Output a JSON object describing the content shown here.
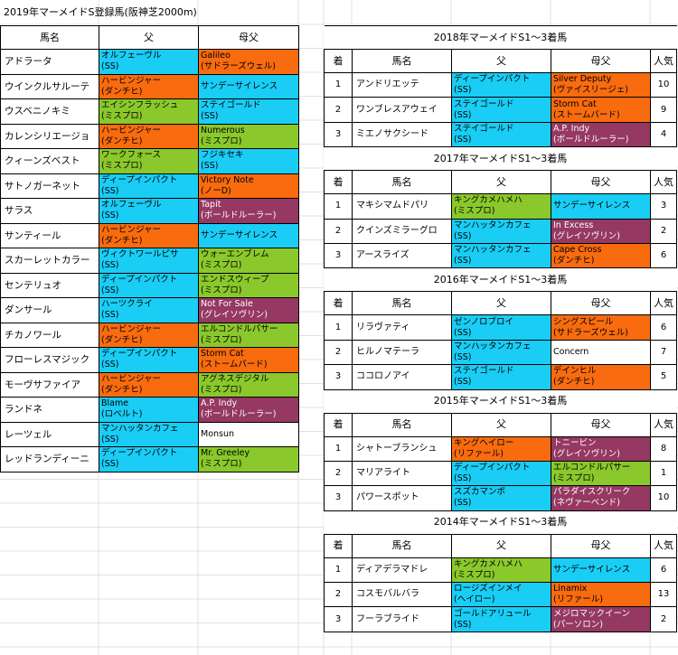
{
  "title": "2019年マーメイドS登録馬(阪神芝2000m)",
  "colors": {
    "blue": "#19cdf5",
    "orange": "#f86b0e",
    "green": "#8ac82b",
    "purple": "#953862",
    "white": "#ffffff"
  },
  "left": {
    "headers": {
      "name": "馬名",
      "sire": "父",
      "damsire": "母父"
    },
    "rows": [
      {
        "name": "アドラータ",
        "sire": [
          "オルフェーヴル",
          "(SS)"
        ],
        "sire_color": "blue",
        "damsire": [
          "Galileo",
          "(サドラーズウェル)"
        ],
        "damsire_color": "orange"
      },
      {
        "name": "ウインクルサルーテ",
        "sire": [
          "ハービンジャー",
          "(ダンチヒ)"
        ],
        "sire_color": "orange",
        "damsire": [
          "サンデーサイレンス"
        ],
        "damsire_color": "blue"
      },
      {
        "name": "ウスベニノキミ",
        "sire": [
          "エイシンフラッシュ",
          "(ミスプロ)"
        ],
        "sire_color": "green",
        "damsire": [
          "ステイゴールド",
          "(SS)"
        ],
        "damsire_color": "blue"
      },
      {
        "name": "カレンシリエージョ",
        "sire": [
          "ハービンジャー",
          "(ダンチヒ)"
        ],
        "sire_color": "orange",
        "damsire": [
          "Numerous",
          "(ミスプロ)"
        ],
        "damsire_color": "green"
      },
      {
        "name": "クィーンズベスト",
        "sire": [
          "ワークフォース",
          "(ミスプロ)"
        ],
        "sire_color": "green",
        "damsire": [
          "フジキセキ",
          "(SS)"
        ],
        "damsire_color": "blue"
      },
      {
        "name": "サトノガーネット",
        "sire": [
          "ディープインパクト",
          "(SS)"
        ],
        "sire_color": "blue",
        "damsire": [
          "Victory Note",
          "(ノーD)"
        ],
        "damsire_color": "orange"
      },
      {
        "name": "サラス",
        "sire": [
          "オルフェーヴル",
          "(SS)"
        ],
        "sire_color": "blue",
        "damsire": [
          "Tapit",
          "(ボールドルーラー)"
        ],
        "damsire_color": "purple"
      },
      {
        "name": "サンティール",
        "sire": [
          "ハービンジャー",
          "(ダンチヒ)"
        ],
        "sire_color": "orange",
        "damsire": [
          "サンデーサイレンス"
        ],
        "damsire_color": "blue"
      },
      {
        "name": "スカーレットカラー",
        "sire": [
          "ヴィクトワールピサ",
          "(SS)"
        ],
        "sire_color": "blue",
        "damsire": [
          "ウォーエンブレム",
          "(ミスプロ)"
        ],
        "damsire_color": "green"
      },
      {
        "name": "センテリュオ",
        "sire": [
          "ディープインパクト",
          "(SS)"
        ],
        "sire_color": "blue",
        "damsire": [
          "エンドスウィープ",
          "(ミスプロ)"
        ],
        "damsire_color": "green"
      },
      {
        "name": "ダンサール",
        "sire": [
          "ハーツクライ",
          "(SS)"
        ],
        "sire_color": "blue",
        "damsire": [
          "Not For Sale",
          "(グレイソヴリン)"
        ],
        "damsire_color": "purple"
      },
      {
        "name": "チカノワール",
        "sire": [
          "ハービンジャー",
          "(ダンチヒ)"
        ],
        "sire_color": "orange",
        "damsire": [
          "エルコンドルパサー",
          "(ミスプロ)"
        ],
        "damsire_color": "green"
      },
      {
        "name": "フローレスマジック",
        "sire": [
          "ディープインパクト",
          "(SS)"
        ],
        "sire_color": "blue",
        "damsire": [
          "Storm Cat",
          "(ストームバード)"
        ],
        "damsire_color": "orange"
      },
      {
        "name": "モーヴサファイア",
        "sire": [
          "ハービンジャー",
          "(ダンチヒ)"
        ],
        "sire_color": "orange",
        "damsire": [
          "アグネスデジタル",
          "(ミスプロ)"
        ],
        "damsire_color": "green"
      },
      {
        "name": "ランドネ",
        "sire": [
          "Blame",
          "(ロベルト)"
        ],
        "sire_color": "blue",
        "damsire": [
          "A.P. Indy",
          "(ボールドルーラー)"
        ],
        "damsire_color": "purple"
      },
      {
        "name": "レーツェル",
        "sire": [
          "マンハッタンカフェ",
          "(SS)"
        ],
        "sire_color": "blue",
        "damsire": [
          "Monsun"
        ],
        "damsire_color": "white"
      },
      {
        "name": "レッドランディーニ",
        "sire": [
          "ディープインパクト",
          "(SS)"
        ],
        "sire_color": "blue",
        "damsire": [
          "Mr. Greeley",
          "(ミスプロ)"
        ],
        "damsire_color": "green"
      }
    ]
  },
  "right": {
    "headers": {
      "rank": "着",
      "name": "馬名",
      "sire": "父",
      "damsire": "母父",
      "pop": "人気"
    },
    "sections": [
      {
        "title": "2018年マーメイドS1～3着馬",
        "rows": [
          {
            "rank": "1",
            "name": "アンドリエッテ",
            "sire": [
              "ディープインパクト",
              "(SS)"
            ],
            "sire_color": "blue",
            "damsire": [
              "Silver Deputy",
              "(ヴァイスリージェ)"
            ],
            "damsire_color": "orange",
            "pop": "10"
          },
          {
            "rank": "2",
            "name": "ワンブレスアウェイ",
            "sire": [
              "ステイゴールド",
              "(SS)"
            ],
            "sire_color": "blue",
            "damsire": [
              "Storm Cat",
              "(ストームバード)"
            ],
            "damsire_color": "orange",
            "pop": "9"
          },
          {
            "rank": "3",
            "name": "ミエノサクシード",
            "sire": [
              "ステイゴールド",
              "(SS)"
            ],
            "sire_color": "blue",
            "damsire": [
              "A.P. Indy",
              "(ボールドルーラー)"
            ],
            "damsire_color": "purple",
            "pop": "4"
          }
        ]
      },
      {
        "title": "2017年マーメイドS1～3着馬",
        "rows": [
          {
            "rank": "1",
            "name": "マキシマムドパリ",
            "sire": [
              "キングカメハメハ",
              "(ミスプロ)"
            ],
            "sire_color": "green",
            "damsire": [
              "サンデーサイレンス"
            ],
            "damsire_color": "blue",
            "pop": "3"
          },
          {
            "rank": "2",
            "name": "クインズミラーグロ",
            "sire": [
              "マンハッタンカフェ",
              "(SS)"
            ],
            "sire_color": "blue",
            "damsire": [
              "In Excess",
              "(グレイソヴリン)"
            ],
            "damsire_color": "purple",
            "pop": "2"
          },
          {
            "rank": "3",
            "name": "アースライズ",
            "sire": [
              "マンハッタンカフェ",
              "(SS)"
            ],
            "sire_color": "blue",
            "damsire": [
              "Cape Cross",
              "(ダンチヒ)"
            ],
            "damsire_color": "orange",
            "pop": "6"
          }
        ]
      },
      {
        "title": "2016年マーメイドS1～3着馬",
        "rows": [
          {
            "rank": "1",
            "name": "リラヴァティ",
            "sire": [
              "ゼンノロブロイ",
              "(SS)"
            ],
            "sire_color": "blue",
            "damsire": [
              "シングスピール",
              "(サドラーズウェル)"
            ],
            "damsire_color": "orange",
            "pop": "6"
          },
          {
            "rank": "2",
            "name": "ヒルノマテーラ",
            "sire": [
              "マンハッタンカフェ",
              "(SS)"
            ],
            "sire_color": "blue",
            "damsire": [
              "Concern"
            ],
            "damsire_color": "white",
            "pop": "7"
          },
          {
            "rank": "3",
            "name": "ココロノアイ",
            "sire": [
              "ステイゴールド",
              "(SS)"
            ],
            "sire_color": "blue",
            "damsire": [
              "デインヒル",
              "(ダンチヒ)"
            ],
            "damsire_color": "orange",
            "pop": "5"
          }
        ]
      },
      {
        "title": "2015年マーメイドS1～3着馬",
        "rows": [
          {
            "rank": "1",
            "name": "シャトーブランシュ",
            "sire": [
              "キングヘイロー",
              "(リファール)"
            ],
            "sire_color": "orange",
            "damsire": [
              "トニービン",
              "(グレイソヴリン)"
            ],
            "damsire_color": "purple",
            "pop": "8"
          },
          {
            "rank": "2",
            "name": "マリアライト",
            "sire": [
              "ディープインパクト",
              "(SS)"
            ],
            "sire_color": "blue",
            "damsire": [
              "エルコンドルパサー",
              "(ミスプロ)"
            ],
            "damsire_color": "green",
            "pop": "1"
          },
          {
            "rank": "3",
            "name": "パワースポット",
            "sire": [
              "スズカマンボ",
              "(SS)"
            ],
            "sire_color": "blue",
            "damsire": [
              "パラダイスクリーク",
              "(ネヴァーベンド)"
            ],
            "damsire_color": "purple",
            "pop": "10"
          }
        ]
      },
      {
        "title": "2014年マーメイドS1～3着馬",
        "rows": [
          {
            "rank": "1",
            "name": "ディアデラマドレ",
            "sire": [
              "キングカメハメハ",
              "(ミスプロ)"
            ],
            "sire_color": "green",
            "damsire": [
              "サンデーサイレンス"
            ],
            "damsire_color": "blue",
            "pop": "6"
          },
          {
            "rank": "2",
            "name": "コスモバルバラ",
            "sire": [
              "ロージズインメイ",
              "(ヘイロー)"
            ],
            "sire_color": "blue",
            "damsire": [
              "Linamix",
              "(リファール)"
            ],
            "damsire_color": "orange",
            "pop": "13"
          },
          {
            "rank": "3",
            "name": "フーラブライド",
            "sire": [
              "ゴールドアリュール",
              "(SS)"
            ],
            "sire_color": "blue",
            "damsire": [
              "メジロマックイーン",
              "(パーソロン)"
            ],
            "damsire_color": "purple",
            "pop": "2"
          }
        ]
      }
    ]
  }
}
